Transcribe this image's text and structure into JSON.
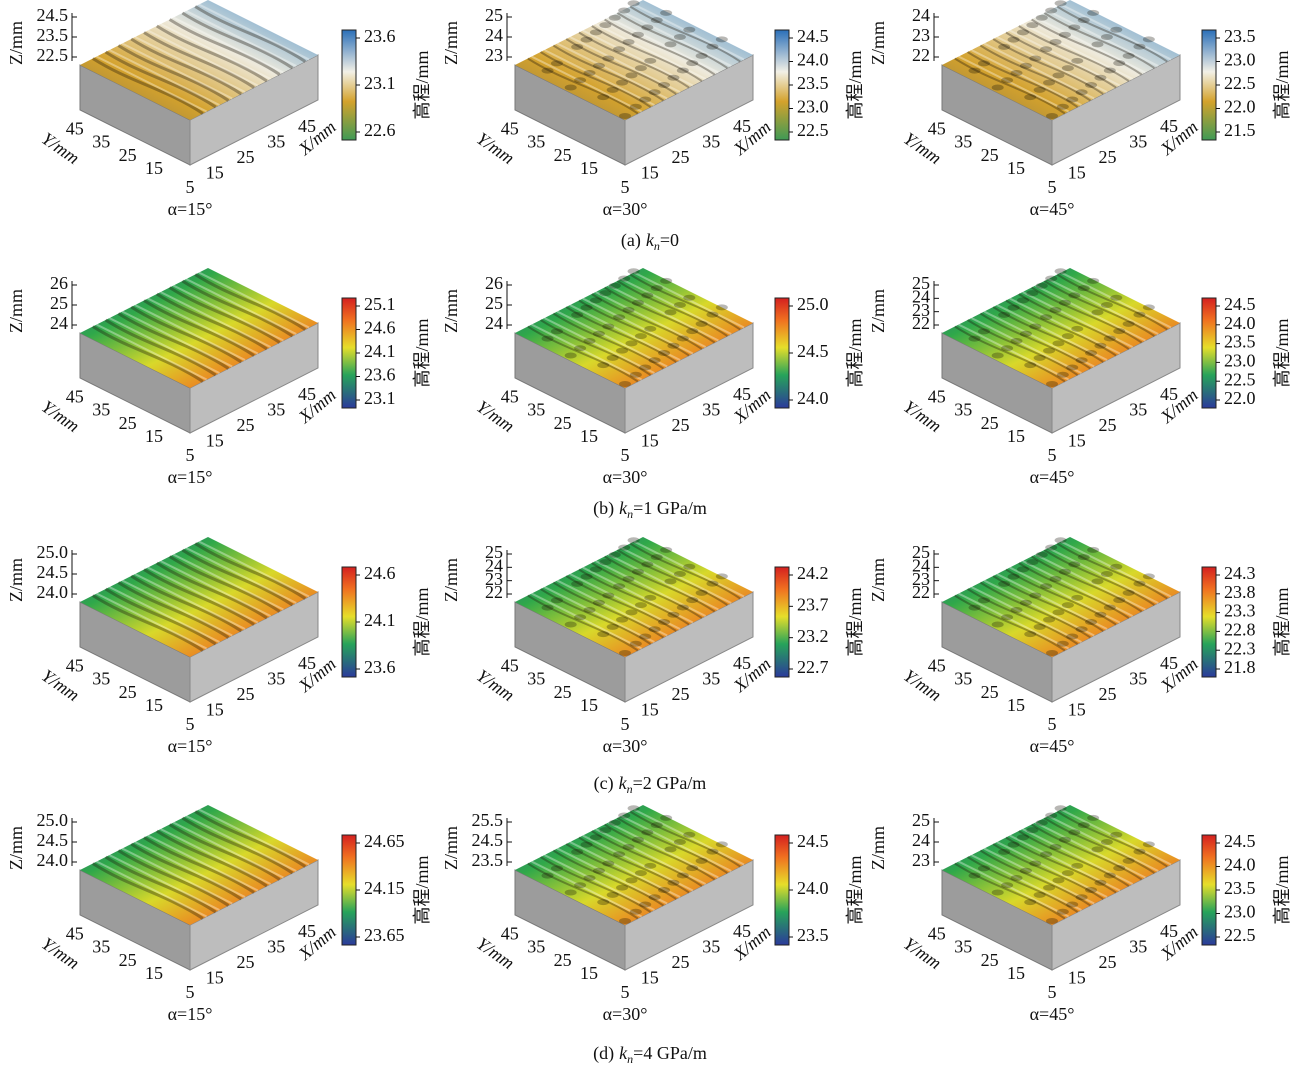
{
  "axes": {
    "z_label": "Z/mm",
    "y_label": "Y/mm",
    "x_label": "X/mm",
    "colorbar_label": "高程/mm",
    "y_ticks": [
      "45",
      "35",
      "25",
      "15"
    ],
    "x_ticks": [
      "5",
      "15",
      "25",
      "35",
      "45"
    ]
  },
  "rows": [
    {
      "caption": {
        "label": "(a)",
        "symbol": "k",
        "subscript": "n",
        "value": "=0"
      },
      "plots": [
        {
          "angle": "α=15°",
          "z_ticks": [
            "24.5",
            "23.5",
            "22.5"
          ],
          "colorbar_ticks": [
            "23.6",
            "23.1",
            "22.6"
          ]
        },
        {
          "angle": "α=30°",
          "z_ticks": [
            "25",
            "24",
            "23"
          ],
          "colorbar_ticks": [
            "24.5",
            "24.0",
            "23.5",
            "23.0",
            "22.5"
          ]
        },
        {
          "angle": "α=45°",
          "z_ticks": [
            "24",
            "23",
            "22"
          ],
          "colorbar_ticks": [
            "23.5",
            "23.0",
            "22.5",
            "22.0",
            "21.5"
          ]
        }
      ]
    },
    {
      "caption": {
        "label": "(b)",
        "symbol": "k",
        "subscript": "n",
        "value": "=1 GPa/m"
      },
      "plots": [
        {
          "angle": "α=15°",
          "z_ticks": [
            "26",
            "25",
            "24"
          ],
          "colorbar_ticks": [
            "25.1",
            "24.6",
            "24.1",
            "23.6",
            "23.1"
          ]
        },
        {
          "angle": "α=30°",
          "z_ticks": [
            "26",
            "25",
            "24"
          ],
          "colorbar_ticks": [
            "25.0",
            "24.5",
            "24.0"
          ]
        },
        {
          "angle": "α=45°",
          "z_ticks": [
            "25",
            "24",
            "23",
            "22"
          ],
          "colorbar_ticks": [
            "24.5",
            "24.0",
            "23.5",
            "23.0",
            "22.5",
            "22.0"
          ]
        }
      ]
    },
    {
      "caption": {
        "label": "(c)",
        "symbol": "k",
        "subscript": "n",
        "value": "=2 GPa/m"
      },
      "plots": [
        {
          "angle": "α=15°",
          "z_ticks": [
            "25.0",
            "24.5",
            "24.0"
          ],
          "colorbar_ticks": [
            "24.6",
            "24.1",
            "23.6"
          ]
        },
        {
          "angle": "α=30°",
          "z_ticks": [
            "25",
            "24",
            "23",
            "22"
          ],
          "colorbar_ticks": [
            "24.2",
            "23.7",
            "23.2",
            "22.7"
          ]
        },
        {
          "angle": "α=45°",
          "z_ticks": [
            "25",
            "24",
            "23",
            "22"
          ],
          "colorbar_ticks": [
            "24.3",
            "23.8",
            "23.3",
            "22.8",
            "22.3",
            "21.8"
          ]
        }
      ]
    },
    {
      "caption": {
        "label": "(d)",
        "symbol": "k",
        "subscript": "n",
        "value": "=4 GPa/m"
      },
      "plots": [
        {
          "angle": "α=15°",
          "z_ticks": [
            "25.0",
            "24.5",
            "24.0"
          ],
          "colorbar_ticks": [
            "24.65",
            "24.15",
            "23.65"
          ]
        },
        {
          "angle": "α=30°",
          "z_ticks": [
            "25.5",
            "24.5",
            "23.5"
          ],
          "colorbar_ticks": [
            "24.5",
            "24.0",
            "23.5"
          ]
        },
        {
          "angle": "α=45°",
          "z_ticks": [
            "25",
            "24",
            "23"
          ],
          "colorbar_ticks": [
            "24.5",
            "24.0",
            "23.5",
            "23.0",
            "22.5"
          ]
        }
      ]
    }
  ]
}
